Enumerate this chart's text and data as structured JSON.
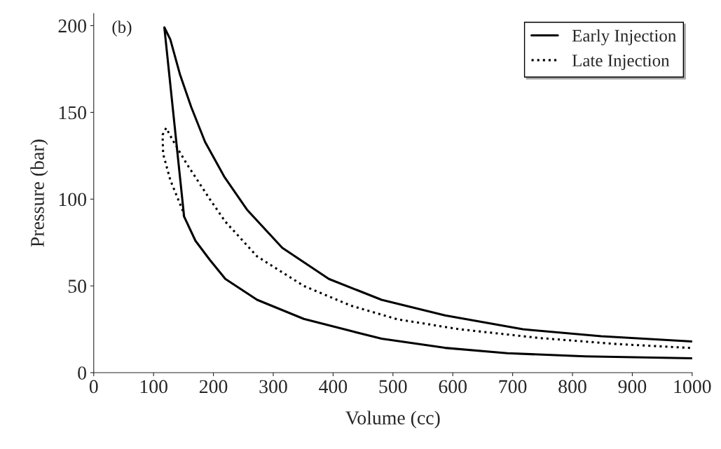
{
  "chart_data": {
    "type": "line",
    "xlabel": "Volume (cc)",
    "ylabel": "Pressure (bar)",
    "annotations": [
      "(b)"
    ],
    "xlim": [
      0,
      1000
    ],
    "ylim": [
      0,
      207
    ],
    "xticks": [
      0,
      100,
      200,
      300,
      400,
      500,
      600,
      700,
      800,
      900,
      1000
    ],
    "yticks": [
      0,
      50,
      100,
      150,
      200
    ],
    "grid": false,
    "legend": "top right",
    "marker": "none",
    "series": [
      {
        "name": "Early Injection",
        "color": "#000000",
        "line_style": "solid",
        "x": [
          1000,
          822,
          691,
          587,
          481,
          430,
          351,
          273,
          220,
          194,
          170,
          151,
          118,
          128,
          144,
          163,
          186,
          218,
          256,
          315,
          393,
          481,
          587,
          717,
          848,
          1000
        ],
        "values": [
          8.3,
          9.4,
          11.2,
          14.3,
          19.6,
          24,
          31,
          42,
          54,
          65,
          76,
          90,
          199,
          192,
          172,
          153,
          133,
          113,
          94,
          72,
          54,
          42,
          33,
          25,
          21,
          18
        ]
      },
      {
        "name": "Late Injection",
        "color": "#000000",
        "line_style": "dotted",
        "x": [
          151,
          148,
          128,
          116,
          115,
          121,
          132,
          156,
          194,
          220,
          273,
          351,
          430,
          508,
          612,
          744,
          874,
          1000
        ],
        "values": [
          90,
          94,
          111,
          126,
          137,
          141,
          134,
          120,
          100,
          87,
          67,
          50,
          38.6,
          30.7,
          25,
          20,
          16.5,
          14.2
        ]
      }
    ]
  }
}
